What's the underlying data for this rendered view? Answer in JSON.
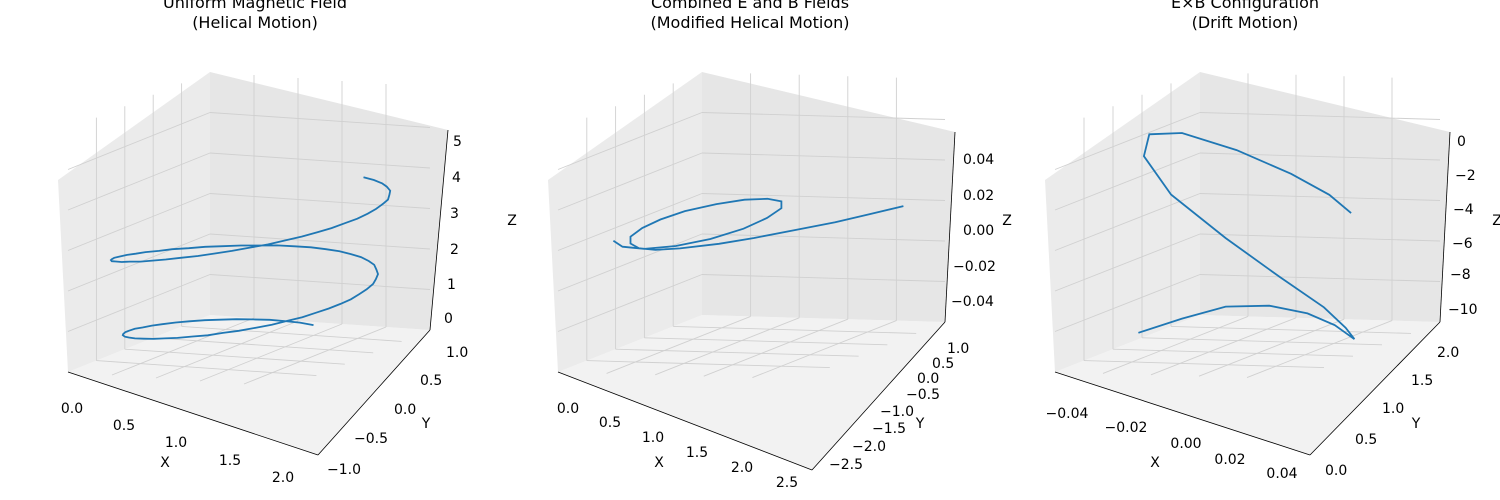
{
  "chart_data": [
    {
      "type": "line3d",
      "title_line1": "Uniform Magnetic Field",
      "title_line2": "(Helical Motion)",
      "xlabel": "X",
      "ylabel": "Y",
      "zlabel": "Z",
      "x_ticks": [
        "0.0",
        "0.5",
        "1.0",
        "1.5",
        "2.0"
      ],
      "y_ticks": [
        "−1.0",
        "−0.5",
        "0.0",
        "0.5",
        "1.0"
      ],
      "z_ticks": [
        "0",
        "1",
        "2",
        "3",
        "4",
        "5"
      ],
      "series_color": "#1f77b4",
      "series": [
        {
          "x": [
            0.0,
            0.01,
            0.04,
            0.09,
            0.16,
            0.25,
            0.35,
            0.46,
            0.58,
            0.71,
            0.84,
            0.97,
            1.1,
            1.22,
            1.34,
            1.46,
            1.57,
            1.67,
            1.76,
            1.84,
            1.9,
            1.95,
            1.98,
            2.0,
            2.0,
            1.98,
            1.95,
            1.9,
            1.84,
            1.76,
            1.67,
            1.57,
            1.46,
            1.34,
            1.22,
            1.1,
            0.97,
            0.84,
            0.71,
            0.58,
            0.46,
            0.35,
            0.25,
            0.16,
            0.09,
            0.04,
            0.01,
            0.0,
            0.01,
            0.04,
            0.09,
            0.16,
            0.25,
            0.35,
            0.46,
            0.58,
            0.71,
            0.84,
            0.97,
            1.1,
            1.22,
            1.34,
            1.46,
            1.57,
            1.67,
            1.76,
            1.84,
            1.9,
            1.95,
            1.98,
            2.0,
            2.0,
            1.98,
            1.95,
            1.9,
            1.84,
            1.76,
            1.67,
            1.57,
            1.46,
            1.34,
            1.22,
            1.1,
            0.97,
            0.84,
            0.71,
            0.58,
            0.46,
            0.35,
            0.25,
            0.16,
            0.09,
            0.04,
            0.01,
            0.0
          ],
          "y": [
            0.0,
            0.13,
            0.26,
            0.38,
            0.5,
            0.61,
            0.71,
            0.79,
            0.87,
            0.92,
            0.97,
            0.99,
            1.0,
            1.0,
            0.98,
            0.94,
            0.89,
            0.83,
            0.75,
            0.66,
            0.56,
            0.44,
            0.32,
            0.2,
            0.07,
            -0.07,
            -0.2,
            -0.32,
            -0.44,
            -0.56,
            -0.66,
            -0.75,
            -0.83,
            -0.89,
            -0.94,
            -0.98,
            -1.0,
            -1.0,
            -0.99,
            -0.97,
            -0.92,
            -0.87,
            -0.79,
            -0.71,
            -0.61,
            -0.5,
            -0.38,
            -0.26,
            -0.13,
            0.0,
            0.13,
            0.26,
            0.38,
            0.5,
            0.61,
            0.71,
            0.79,
            0.87,
            0.92,
            0.97,
            0.99,
            1.0,
            1.0,
            0.98,
            0.94,
            0.89,
            0.83,
            0.75,
            0.66,
            0.56,
            0.44,
            0.32,
            0.2,
            0.07,
            -0.07,
            -0.2,
            -0.32,
            -0.44,
            -0.56,
            -0.66,
            -0.75,
            -0.83,
            -0.89,
            -0.94,
            -0.98,
            -1.0,
            -1.0,
            -0.99,
            -0.97,
            -0.92,
            -0.87,
            -0.79,
            -0.71,
            -0.61,
            -0.5
          ],
          "z": [
            0.0,
            0.04,
            0.07,
            0.11,
            0.14,
            0.18,
            0.21,
            0.25,
            0.28,
            0.32,
            0.35,
            0.39,
            0.42,
            0.46,
            0.49,
            0.53,
            0.56,
            0.6,
            0.63,
            0.67,
            0.7,
            0.74,
            0.77,
            0.81,
            0.84,
            0.88,
            0.91,
            0.95,
            0.98,
            1.02,
            1.05,
            1.09,
            1.12,
            1.16,
            1.19,
            1.23,
            1.26,
            1.3,
            1.33,
            1.37,
            1.4,
            1.44,
            1.47,
            1.51,
            1.54,
            1.58,
            1.61,
            1.65,
            1.68,
            1.72,
            1.75,
            1.79,
            1.82,
            1.86,
            1.89,
            1.93,
            1.96,
            2.0,
            2.03,
            2.07,
            2.1,
            2.14,
            2.17,
            2.21,
            2.24,
            2.28,
            2.31,
            2.35,
            2.38,
            2.42,
            2.45,
            2.49,
            2.52,
            2.56,
            2.59,
            2.63,
            2.66,
            2.7,
            2.73,
            2.77,
            2.8,
            2.84,
            2.87,
            2.91,
            2.94,
            2.98,
            3.01,
            3.05,
            3.08,
            3.12,
            3.15,
            3.19,
            3.22,
            3.26,
            3.3
          ]
        }
      ]
    },
    {
      "type": "line3d",
      "title_line1": "Combined E and B Fields",
      "title_line2": "(Modified Helical Motion)",
      "xlabel": "X",
      "ylabel": "Y",
      "zlabel": "Z",
      "x_ticks": [
        "0.0",
        "0.5",
        "1.0",
        "1.5",
        "2.0",
        "2.5"
      ],
      "y_ticks": [
        "−2.5",
        "−2.0",
        "−1.5",
        "−1.0",
        "−0.5",
        "0.0",
        "0.5",
        "1.0"
      ],
      "z_ticks": [
        "−0.04",
        "−0.02",
        "0.00",
        "0.02",
        "0.04"
      ],
      "series_color": "#1f77b4",
      "series": [
        {
          "x": [
            0.2,
            0.6,
            1.0,
            1.4,
            1.8,
            2.1,
            2.35,
            2.45,
            2.4,
            2.2,
            1.9,
            1.5,
            1.1,
            0.7,
            0.35,
            0.12,
            0.05,
            0.15,
            0.45,
            0.9,
            1.4,
            1.9,
            2.25,
            2.42,
            2.35,
            2.1
          ],
          "y": [
            -2.3,
            -2.1,
            -1.9,
            -1.6,
            -1.3,
            -1.0,
            -0.6,
            -0.3,
            0.0,
            0.3,
            0.55,
            0.7,
            0.75,
            0.7,
            0.5,
            0.25,
            -0.05,
            -0.35,
            -0.6,
            -0.75,
            -0.8,
            -0.7,
            -0.45,
            -0.1,
            0.3,
            0.65
          ],
          "z": [
            0,
            0,
            0,
            0,
            0,
            0,
            0,
            0,
            0,
            0,
            0,
            0,
            0,
            0,
            0,
            0,
            0,
            0,
            0,
            0,
            0,
            0,
            0,
            0,
            0,
            0
          ]
        }
      ]
    },
    {
      "type": "line3d",
      "title_line1": "E×B Configuration",
      "title_line2": "(Drift Motion)",
      "xlabel": "X",
      "ylabel": "Y",
      "zlabel": "Z",
      "x_ticks": [
        "−0.04",
        "−0.02",
        "0.00",
        "0.02",
        "0.04"
      ],
      "y_ticks": [
        "0.0",
        "0.5",
        "1.0",
        "1.5",
        "2.0"
      ],
      "z_ticks": [
        "−10",
        "−8",
        "−6",
        "−4",
        "−2",
        "0"
      ],
      "series_color": "#1f77b4",
      "series": [
        {
          "x": [
            0,
            0,
            0,
            0,
            0,
            0,
            0,
            0,
            0,
            0,
            0,
            0,
            0,
            0,
            0,
            0,
            0,
            0,
            0,
            0
          ],
          "y": [
            2.0,
            1.6,
            1.2,
            0.8,
            0.45,
            0.2,
            0.05,
            0.02,
            0.1,
            0.3,
            0.7,
            1.2,
            1.7,
            1.95,
            1.9,
            1.6,
            1.1,
            0.6,
            0.25,
            0.05
          ],
          "z": [
            -10.0,
            -9.3,
            -8.7,
            -8.6,
            -8.9,
            -9.4,
            -9.9,
            -10.0,
            -9.5,
            -8.6,
            -7.3,
            -5.6,
            -3.7,
            -2.0,
            -1.0,
            -0.9,
            -1.6,
            -2.6,
            -3.5,
            -4.3
          ]
        }
      ]
    }
  ]
}
